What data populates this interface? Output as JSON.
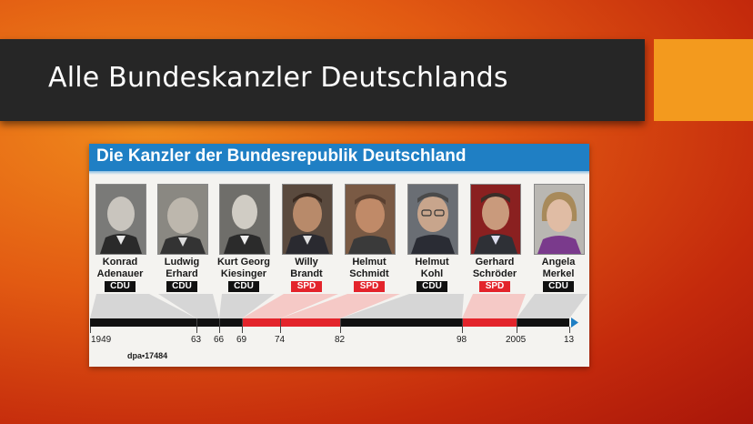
{
  "slide": {
    "title": "Alle Bundeskanzler Deutschlands",
    "colors": {
      "title_bar": "#262626",
      "accent": "#f39a1e",
      "background": "#e25a12"
    }
  },
  "graphic": {
    "title": "Die Kanzler der Bundesrepublik Deutschland",
    "header_color": "#1f7fc4",
    "credit": "dpa•17484",
    "chancellors": [
      {
        "first": "Konrad",
        "last": "Adenauer",
        "party": "CDU"
      },
      {
        "first": "Ludwig",
        "last": "Erhard",
        "party": "CDU"
      },
      {
        "first": "Kurt Georg",
        "last": "Kiesinger",
        "party": "CDU"
      },
      {
        "first": "Willy",
        "last": "Brandt",
        "party": "SPD"
      },
      {
        "first": "Helmut",
        "last": "Schmidt",
        "party": "SPD"
      },
      {
        "first": "Helmut",
        "last": "Kohl",
        "party": "CDU"
      },
      {
        "first": "Gerhard",
        "last": "Schröder",
        "party": "SPD"
      },
      {
        "first": "Angela",
        "last": "Merkel",
        "party": "CDU"
      }
    ],
    "years": [
      "1949",
      "63",
      "66",
      "69",
      "74",
      "82",
      "98",
      "2005",
      "13"
    ],
    "party_colors": {
      "CDU": "#111111",
      "SPD": "#e3242b"
    }
  }
}
